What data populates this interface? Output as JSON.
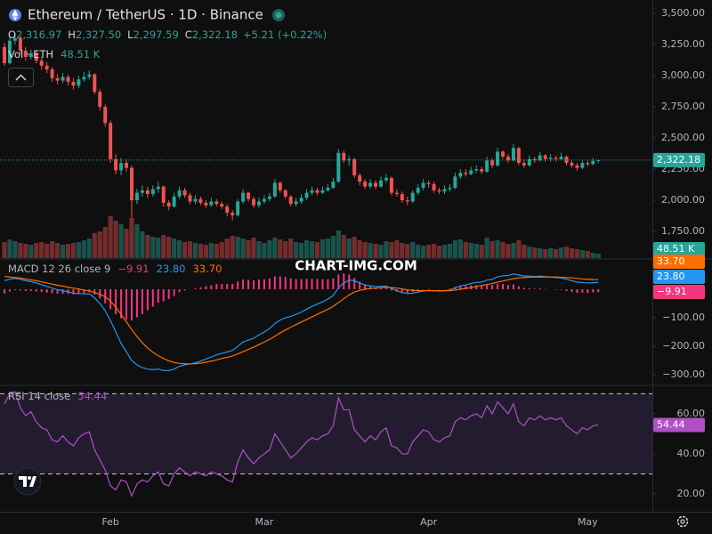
{
  "watermark": "CHART-IMG.COM",
  "chart_data": [
    {
      "type": "candlestick",
      "title": "Ethereum / TetherUS · 1D · Binance",
      "ohlc_legend": [
        {
          "label": "O",
          "value": "2,316.97"
        },
        {
          "label": "H",
          "value": "2,327.50"
        },
        {
          "label": "L",
          "value": "2,297.59"
        },
        {
          "label": "C",
          "value": "2,322.18"
        }
      ],
      "change_label": "+5.21 (+0.22%)",
      "last_label": "2,322.18",
      "up_color": "#26a69a",
      "down_color": "#ef5350",
      "xlim": [
        -0.84,
        122.2
      ],
      "xticks": [
        {
          "value": 20,
          "label": "Feb"
        },
        {
          "value": 49,
          "label": "Mar"
        },
        {
          "value": 80,
          "label": "Apr"
        },
        {
          "value": 110,
          "label": "May"
        }
      ],
      "ylim": [
        1536,
        3607
      ],
      "yticks": [
        {
          "value": 1750,
          "label": "1,750.00"
        },
        {
          "value": 2000,
          "label": "2,000.00"
        },
        {
          "value": 2250,
          "label": "2,250.00"
        },
        {
          "value": 2500,
          "label": "2,500.00"
        },
        {
          "value": 2750,
          "label": "2,750.00"
        },
        {
          "value": 3000,
          "label": "3,000.00"
        },
        {
          "value": 3250,
          "label": "3,250.00"
        },
        {
          "value": 3500,
          "label": "3,500.00"
        }
      ],
      "x": [
        0,
        1,
        2,
        3,
        4,
        5,
        6,
        7,
        8,
        9,
        10,
        11,
        12,
        13,
        14,
        15,
        16,
        17,
        18,
        19,
        20,
        21,
        22,
        23,
        24,
        25,
        26,
        27,
        28,
        29,
        30,
        31,
        32,
        33,
        34,
        35,
        36,
        37,
        38,
        39,
        40,
        41,
        42,
        43,
        44,
        45,
        46,
        47,
        48,
        49,
        50,
        51,
        52,
        53,
        54,
        55,
        56,
        57,
        58,
        59,
        60,
        61,
        62,
        63,
        64,
        65,
        66,
        67,
        68,
        69,
        70,
        71,
        72,
        73,
        74,
        75,
        76,
        77,
        78,
        79,
        80,
        81,
        82,
        83,
        84,
        85,
        86,
        87,
        88,
        89,
        90,
        91,
        92,
        93,
        94,
        95,
        96,
        97,
        98,
        99,
        100,
        101,
        102,
        103,
        104,
        105,
        106,
        107,
        108,
        109,
        110,
        111,
        112
      ],
      "open": [
        3230,
        3100,
        3280,
        3300,
        3200,
        3150,
        3180,
        3120,
        3080,
        3050,
        2980,
        2960,
        2990,
        2950,
        2920,
        2970,
        2990,
        3010,
        2870,
        2750,
        2620,
        2330,
        2240,
        2300,
        2260,
        2000,
        2060,
        2080,
        2050,
        2090,
        2110,
        1980,
        1950,
        2030,
        2080,
        2040,
        1990,
        2010,
        1980,
        1960,
        1990,
        1970,
        1950,
        1900,
        1880,
        1990,
        2060,
        2010,
        1960,
        1990,
        2010,
        2030,
        2140,
        2080,
        2030,
        1970,
        1990,
        2020,
        2060,
        2080,
        2060,
        2080,
        2100,
        2150,
        2380,
        2320,
        2330,
        2200,
        2150,
        2110,
        2140,
        2110,
        2160,
        2180,
        2060,
        2050,
        2000,
        1990,
        2060,
        2100,
        2140,
        2130,
        2080,
        2070,
        2090,
        2100,
        2190,
        2220,
        2210,
        2240,
        2250,
        2230,
        2320,
        2280,
        2390,
        2350,
        2320,
        2420,
        2300,
        2280,
        2330,
        2320,
        2360,
        2330,
        2340,
        2330,
        2350,
        2300,
        2280,
        2260,
        2300,
        2290,
        2316.97
      ],
      "high": [
        3260,
        3310,
        3340,
        3320,
        3230,
        3210,
        3200,
        3150,
        3110,
        3070,
        3010,
        3020,
        3010,
        2980,
        3000,
        3030,
        3040,
        3020,
        2890,
        2770,
        2640,
        2370,
        2340,
        2330,
        2280,
        2090,
        2120,
        2110,
        2120,
        2150,
        2120,
        2000,
        2060,
        2110,
        2100,
        2060,
        2040,
        2030,
        2000,
        2020,
        2010,
        1990,
        1970,
        1920,
        2010,
        2090,
        2070,
        2030,
        2020,
        2040,
        2060,
        2170,
        2150,
        2090,
        2040,
        2020,
        2050,
        2090,
        2110,
        2100,
        2110,
        2130,
        2180,
        2410,
        2400,
        2360,
        2340,
        2220,
        2170,
        2170,
        2160,
        2190,
        2210,
        2190,
        2090,
        2070,
        2030,
        2080,
        2130,
        2170,
        2160,
        2150,
        2100,
        2120,
        2130,
        2220,
        2250,
        2250,
        2270,
        2280,
        2270,
        2350,
        2340,
        2420,
        2400,
        2370,
        2450,
        2430,
        2330,
        2360,
        2350,
        2390,
        2370,
        2370,
        2360,
        2380,
        2360,
        2320,
        2300,
        2320,
        2320,
        2340,
        2327.5
      ],
      "low": [
        3080,
        3090,
        3250,
        3170,
        3120,
        3130,
        3100,
        3050,
        3020,
        2950,
        2930,
        2940,
        2920,
        2890,
        2900,
        2950,
        2970,
        2850,
        2720,
        2590,
        2300,
        2210,
        2200,
        2230,
        1860,
        1970,
        2030,
        2020,
        2030,
        2060,
        1950,
        1920,
        1940,
        2010,
        2020,
        1970,
        1970,
        1960,
        1940,
        1950,
        1950,
        1930,
        1870,
        1840,
        1870,
        1970,
        1990,
        1940,
        1940,
        1970,
        1990,
        2020,
        2060,
        2010,
        1950,
        1950,
        1970,
        2000,
        2040,
        2040,
        2050,
        2070,
        2090,
        2140,
        2300,
        2280,
        2180,
        2120,
        2090,
        2090,
        2090,
        2100,
        2140,
        2040,
        2030,
        1980,
        1960,
        1980,
        2040,
        2080,
        2100,
        2060,
        2050,
        2050,
        2070,
        2090,
        2170,
        2190,
        2200,
        2220,
        2210,
        2220,
        2260,
        2270,
        2330,
        2300,
        2310,
        2280,
        2260,
        2270,
        2300,
        2310,
        2310,
        2310,
        2310,
        2320,
        2280,
        2260,
        2240,
        2250,
        2270,
        2280,
        2297.59
      ],
      "close": [
        3100,
        3280,
        3300,
        3200,
        3150,
        3180,
        3120,
        3080,
        3050,
        2980,
        2960,
        2990,
        2950,
        2920,
        2970,
        2990,
        3010,
        2870,
        2750,
        2620,
        2330,
        2240,
        2300,
        2260,
        2000,
        2060,
        2080,
        2050,
        2090,
        2110,
        1980,
        1950,
        2030,
        2080,
        2040,
        1990,
        2010,
        1980,
        1960,
        1990,
        1970,
        1950,
        1900,
        1880,
        1990,
        2060,
        2010,
        1960,
        1990,
        2010,
        2030,
        2140,
        2080,
        2030,
        1970,
        1990,
        2020,
        2060,
        2080,
        2060,
        2080,
        2100,
        2150,
        2380,
        2320,
        2330,
        2200,
        2150,
        2110,
        2140,
        2110,
        2160,
        2180,
        2060,
        2050,
        2000,
        1990,
        2060,
        2100,
        2140,
        2130,
        2080,
        2070,
        2090,
        2100,
        2190,
        2220,
        2210,
        2240,
        2250,
        2230,
        2320,
        2280,
        2390,
        2350,
        2320,
        2420,
        2300,
        2280,
        2330,
        2320,
        2360,
        2330,
        2340,
        2330,
        2350,
        2300,
        2280,
        2260,
        2300,
        2290,
        2317,
        2322.18
      ],
      "volume": {
        "name": "Vol · ETH",
        "value_label": "48.51 K",
        "ylim": [
          0,
          2900
        ],
        "values": [
          180,
          210,
          190,
          170,
          160,
          150,
          170,
          180,
          160,
          190,
          170,
          150,
          160,
          170,
          180,
          200,
          220,
          280,
          300,
          350,
          470,
          420,
          380,
          330,
          450,
          380,
          300,
          260,
          240,
          230,
          260,
          240,
          220,
          200,
          180,
          190,
          170,
          160,
          150,
          170,
          160,
          180,
          220,
          250,
          240,
          220,
          200,
          230,
          190,
          170,
          200,
          230,
          210,
          190,
          220,
          180,
          170,
          200,
          190,
          180,
          210,
          220,
          250,
          310,
          260,
          220,
          240,
          200,
          180,
          170,
          160,
          150,
          190,
          180,
          200,
          170,
          160,
          180,
          150,
          140,
          150,
          160,
          140,
          150,
          160,
          200,
          210,
          180,
          170,
          160,
          150,
          230,
          190,
          200,
          180,
          160,
          170,
          200,
          150,
          130,
          120,
          110,
          100,
          110,
          100,
          120,
          130,
          110,
          100,
          90,
          80,
          60,
          48.51
        ]
      }
    },
    {
      "type": "macd",
      "title": "MACD 12 26 close 9",
      "ylim": [
        -334,
        103
      ],
      "yticks": [
        {
          "value": -300,
          "label": "−300.00"
        },
        {
          "value": -200,
          "label": "−200.00"
        },
        {
          "value": -100,
          "label": "−100.00"
        }
      ],
      "histogram": {
        "color": "#f23680",
        "value_label": "−9.91",
        "values": [
          -15,
          -8,
          -3,
          -4,
          -6,
          -6,
          -8,
          -10,
          -12,
          -14,
          -16,
          -16,
          -16,
          -18,
          -16,
          -13,
          -10,
          -19,
          -32,
          -49,
          -69,
          -87,
          -102,
          -106,
          -109,
          -99,
          -87,
          -74,
          -61,
          -47,
          -42,
          -34,
          -23,
          -10,
          -4,
          0,
          3,
          7,
          11,
          14,
          18,
          18,
          19,
          19,
          27,
          34,
          33,
          31,
          34,
          35,
          38,
          45,
          45,
          43,
          38,
          36,
          35,
          36,
          37,
          36,
          35,
          35,
          38,
          52,
          55,
          52,
          40,
          26,
          15,
          9,
          6,
          4,
          4,
          -4,
          -9,
          -13,
          -13,
          -10,
          -5,
          -1,
          1,
          0,
          -1,
          0,
          2,
          8,
          12,
          12,
          14,
          14,
          12,
          15,
          15,
          19,
          18,
          15,
          17,
          10,
          5,
          4,
          2,
          3,
          1,
          0,
          -2,
          -2,
          -6,
          -10,
          -13,
          -12,
          -13,
          -11,
          -9.91
        ]
      },
      "macd": {
        "color": "#2196f3",
        "value_label": "23.80",
        "values": [
          30,
          35,
          38,
          35,
          30,
          27,
          22,
          16,
          10,
          4,
          -2,
          -5,
          -9,
          -14,
          -15,
          -16,
          -16,
          -30,
          -50,
          -75,
          -110,
          -150,
          -190,
          -220,
          -250,
          -265,
          -275,
          -280,
          -282,
          -280,
          -285,
          -285,
          -280,
          -270,
          -265,
          -262,
          -258,
          -252,
          -245,
          -238,
          -230,
          -225,
          -220,
          -215,
          -200,
          -185,
          -178,
          -172,
          -160,
          -150,
          -138,
          -120,
          -108,
          -100,
          -95,
          -88,
          -80,
          -70,
          -60,
          -52,
          -44,
          -35,
          -22,
          5,
          22,
          32,
          30,
          22,
          15,
          12,
          10,
          10,
          11,
          2,
          -5,
          -12,
          -15,
          -14,
          -10,
          -6,
          -4,
          -5,
          -6,
          -5,
          -3,
          5,
          12,
          15,
          20,
          24,
          25,
          32,
          35,
          44,
          47,
          48,
          54,
          50,
          46,
          46,
          45,
          46,
          44,
          43,
          41,
          40,
          35,
          30,
          25,
          24,
          22,
          23,
          23.8
        ]
      },
      "signal": {
        "color": "#ff6d00",
        "value_label": "33.70",
        "values": [
          45,
          43,
          41,
          39,
          36,
          33,
          30,
          26,
          22,
          18,
          14,
          11,
          7,
          4,
          1,
          -3,
          -6,
          -11,
          -18,
          -26,
          -41,
          -63,
          -88,
          -114,
          -141,
          -166,
          -188,
          -206,
          -221,
          -233,
          -243,
          -251,
          -257,
          -260,
          -261,
          -262,
          -261,
          -259,
          -256,
          -252,
          -248,
          -243,
          -239,
          -234,
          -227,
          -219,
          -211,
          -203,
          -194,
          -185,
          -176,
          -165,
          -153,
          -143,
          -133,
          -124,
          -115,
          -106,
          -97,
          -88,
          -79,
          -70,
          -60,
          -47,
          -33,
          -20,
          -10,
          -4,
          0,
          3,
          4,
          6,
          7,
          6,
          4,
          1,
          -2,
          -4,
          -5,
          -5,
          -5,
          -5,
          -5,
          -5,
          -5,
          -3,
          0,
          3,
          6,
          10,
          13,
          17,
          20,
          25,
          29,
          33,
          37,
          40,
          41,
          42,
          43,
          43,
          43,
          43,
          43,
          42,
          41,
          40,
          38,
          36,
          35,
          34,
          33.7
        ]
      }
    },
    {
      "type": "rsi",
      "title": "RSI 14 close",
      "color": "#b04fc6",
      "value_label": "54.44",
      "band": [
        30,
        70
      ],
      "ylim": [
        11.1,
        73.3
      ],
      "yticks": [
        {
          "value": 20,
          "label": "20.00"
        },
        {
          "value": 40,
          "label": "40.00"
        },
        {
          "value": 60,
          "label": "60.00"
        }
      ],
      "values": [
        65,
        70,
        71,
        63,
        59,
        61,
        56,
        53,
        52,
        47,
        46,
        49,
        46,
        44,
        48,
        50,
        51,
        42,
        37,
        32,
        24,
        22,
        27,
        26,
        19,
        25,
        27,
        26,
        29,
        31,
        25,
        24,
        30,
        33,
        31,
        29,
        31,
        30,
        29,
        31,
        30,
        29,
        27,
        26,
        36,
        42,
        38,
        35,
        38,
        40,
        42,
        50,
        46,
        42,
        38,
        40,
        43,
        46,
        48,
        47,
        49,
        50,
        54,
        68,
        62,
        62,
        52,
        49,
        46,
        49,
        47,
        51,
        53,
        44,
        43,
        40,
        40,
        46,
        49,
        52,
        51,
        47,
        46,
        48,
        49,
        56,
        58,
        57,
        59,
        60,
        58,
        64,
        60,
        66,
        63,
        60,
        65,
        56,
        54,
        58,
        57,
        59,
        57,
        58,
        57,
        58,
        54,
        52,
        50,
        53,
        52,
        54,
        54.44
      ]
    }
  ]
}
